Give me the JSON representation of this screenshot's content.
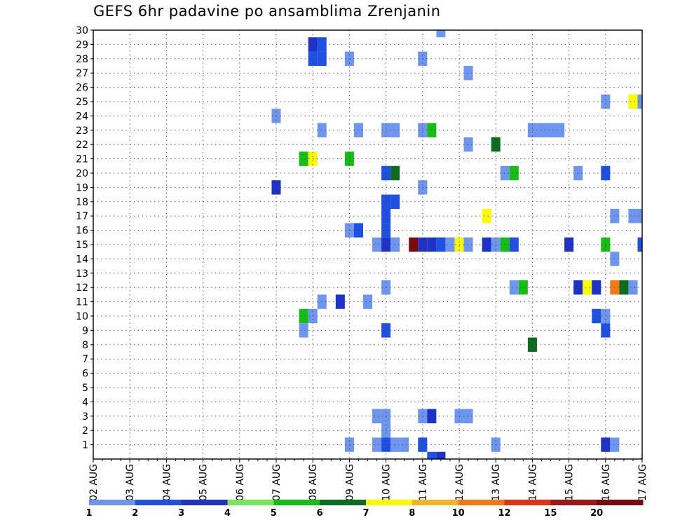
{
  "chart_data": {
    "type": "heatmap",
    "title": "GEFS 6hr padavine po ansamblima Zrenjanin",
    "xlabel": "",
    "ylabel": "",
    "x_tick_labels": [
      "02 AUG",
      "03 AUG",
      "04 AUG",
      "05 AUG",
      "06 AUG",
      "07 AUG",
      "08 AUG",
      "09 AUG",
      "10 AUG",
      "11 AUG",
      "12 AUG",
      "13 AUG",
      "14 AUG",
      "15 AUG",
      "16 AUG",
      "17 AUG"
    ],
    "y_tick_labels": [
      "1",
      "2",
      "3",
      "4",
      "5",
      "6",
      "7",
      "8",
      "9",
      "10",
      "11",
      "12",
      "13",
      "14",
      "15",
      "16",
      "17",
      "18",
      "19",
      "20",
      "21",
      "22",
      "23",
      "24",
      "25",
      "26",
      "27",
      "28",
      "29",
      "30"
    ],
    "x_range_days": [
      0,
      15
    ],
    "y_range": [
      0,
      30
    ],
    "grid": true,
    "grid_style": "dotted",
    "x_step": "6hr",
    "colorbar": {
      "labels": [
        "1",
        "2",
        "3",
        "4",
        "5",
        "6",
        "7",
        "8",
        "10",
        "12",
        "15",
        "20"
      ],
      "colors": [
        "#b4c8f5",
        "#6e96f0",
        "#1e50e6",
        "#1e32c8",
        "#78e65a",
        "#14be14",
        "#0a6e1e",
        "#fafa00",
        "#f5b428",
        "#f57814",
        "#e13214",
        "#a01414",
        "#780a0a"
      ]
    },
    "cells": [
      {
        "x": 5.0,
        "y": 19,
        "c": 3
      },
      {
        "x": 5.0,
        "y": 24,
        "c": 1
      },
      {
        "x": 5.75,
        "y": 10,
        "c": 5
      },
      {
        "x": 5.75,
        "y": 9,
        "c": 1
      },
      {
        "x": 5.75,
        "y": 21,
        "c": 5
      },
      {
        "x": 6.0,
        "y": 10,
        "c": 1
      },
      {
        "x": 6.0,
        "y": 21,
        "c": 7
      },
      {
        "x": 6.0,
        "y": 28,
        "c": 2
      },
      {
        "x": 6.0,
        "y": 29,
        "c": 3
      },
      {
        "x": 6.25,
        "y": 11,
        "c": 1
      },
      {
        "x": 6.25,
        "y": 23,
        "c": 1
      },
      {
        "x": 6.25,
        "y": 28,
        "c": 2
      },
      {
        "x": 6.25,
        "y": 29,
        "c": 2
      },
      {
        "x": 6.75,
        "y": 11,
        "c": 3
      },
      {
        "x": 7.0,
        "y": 1,
        "c": 1
      },
      {
        "x": 7.0,
        "y": 16,
        "c": 1
      },
      {
        "x": 7.0,
        "y": 21,
        "c": 5
      },
      {
        "x": 7.0,
        "y": 28,
        "c": 1
      },
      {
        "x": 7.25,
        "y": 16,
        "c": 2
      },
      {
        "x": 7.25,
        "y": 23,
        "c": 1
      },
      {
        "x": 7.5,
        "y": 11,
        "c": 1
      },
      {
        "x": 7.75,
        "y": 1,
        "c": 1
      },
      {
        "x": 7.75,
        "y": 3,
        "c": 1
      },
      {
        "x": 7.75,
        "y": 15,
        "c": 1
      },
      {
        "x": 8.0,
        "y": 1,
        "c": 2
      },
      {
        "x": 8.0,
        "y": 2,
        "c": 1
      },
      {
        "x": 8.0,
        "y": 3,
        "c": 1
      },
      {
        "x": 8.0,
        "y": 9,
        "c": 2
      },
      {
        "x": 8.0,
        "y": 12,
        "c": 1
      },
      {
        "x": 8.0,
        "y": 15,
        "c": 3
      },
      {
        "x": 8.0,
        "y": 16,
        "c": 2
      },
      {
        "x": 8.0,
        "y": 17,
        "c": 2
      },
      {
        "x": 8.0,
        "y": 18,
        "c": 2
      },
      {
        "x": 8.0,
        "y": 20,
        "c": 2
      },
      {
        "x": 8.0,
        "y": 23,
        "c": 1
      },
      {
        "x": 8.25,
        "y": 1,
        "c": 1
      },
      {
        "x": 8.25,
        "y": 15,
        "c": 1
      },
      {
        "x": 8.25,
        "y": 18,
        "c": 2
      },
      {
        "x": 8.25,
        "y": 20,
        "c": 6
      },
      {
        "x": 8.25,
        "y": 23,
        "c": 1
      },
      {
        "x": 8.5,
        "y": 1,
        "c": 1
      },
      {
        "x": 8.75,
        "y": 15,
        "c": 12
      },
      {
        "x": 9.0,
        "y": 1,
        "c": 2
      },
      {
        "x": 9.0,
        "y": 3,
        "c": 1
      },
      {
        "x": 9.0,
        "y": 15,
        "c": 3
      },
      {
        "x": 9.0,
        "y": 19,
        "c": 1
      },
      {
        "x": 9.0,
        "y": 23,
        "c": 1
      },
      {
        "x": 9.0,
        "y": 28,
        "c": 1
      },
      {
        "x": 9.25,
        "y": 0,
        "c": 2
      },
      {
        "x": 9.25,
        "y": 3,
        "c": 3
      },
      {
        "x": 9.25,
        "y": 15,
        "c": 3
      },
      {
        "x": 9.25,
        "y": 23,
        "c": 5
      },
      {
        "x": 9.5,
        "y": 0,
        "c": 3
      },
      {
        "x": 9.5,
        "y": 15,
        "c": 2
      },
      {
        "x": 9.5,
        "y": 30,
        "c": 1
      },
      {
        "x": 9.75,
        "y": 15,
        "c": 1
      },
      {
        "x": 10.0,
        "y": 3,
        "c": 1
      },
      {
        "x": 10.0,
        "y": 15,
        "c": 7
      },
      {
        "x": 10.25,
        "y": 3,
        "c": 1
      },
      {
        "x": 10.25,
        "y": 15,
        "c": 1
      },
      {
        "x": 10.25,
        "y": 22,
        "c": 1
      },
      {
        "x": 10.25,
        "y": 27,
        "c": 1
      },
      {
        "x": 10.75,
        "y": 15,
        "c": 3
      },
      {
        "x": 10.75,
        "y": 17,
        "c": 7
      },
      {
        "x": 11.0,
        "y": 1,
        "c": 1
      },
      {
        "x": 11.0,
        "y": 15,
        "c": 1
      },
      {
        "x": 11.0,
        "y": 22,
        "c": 6
      },
      {
        "x": 11.25,
        "y": 15,
        "c": 5
      },
      {
        "x": 11.25,
        "y": 20,
        "c": 1
      },
      {
        "x": 11.5,
        "y": 12,
        "c": 1
      },
      {
        "x": 11.5,
        "y": 15,
        "c": 2
      },
      {
        "x": 11.5,
        "y": 20,
        "c": 5
      },
      {
        "x": 11.75,
        "y": 12,
        "c": 5
      },
      {
        "x": 12.0,
        "y": 8,
        "c": 6
      },
      {
        "x": 12.0,
        "y": 23,
        "c": 1
      },
      {
        "x": 12.25,
        "y": 23,
        "c": 1
      },
      {
        "x": 12.5,
        "y": 23,
        "c": 1
      },
      {
        "x": 12.75,
        "y": 23,
        "c": 1
      },
      {
        "x": 13.0,
        "y": 15,
        "c": 3
      },
      {
        "x": 13.25,
        "y": 12,
        "c": 3
      },
      {
        "x": 13.25,
        "y": 20,
        "c": 1
      },
      {
        "x": 13.5,
        "y": 12,
        "c": 7
      },
      {
        "x": 13.75,
        "y": 10,
        "c": 2
      },
      {
        "x": 13.75,
        "y": 12,
        "c": 3
      },
      {
        "x": 14.0,
        "y": 1,
        "c": 3
      },
      {
        "x": 14.0,
        "y": 9,
        "c": 2
      },
      {
        "x": 14.0,
        "y": 10,
        "c": 1
      },
      {
        "x": 14.0,
        "y": 15,
        "c": 5
      },
      {
        "x": 14.0,
        "y": 20,
        "c": 2
      },
      {
        "x": 14.0,
        "y": 25,
        "c": 1
      },
      {
        "x": 14.25,
        "y": 1,
        "c": 1
      },
      {
        "x": 14.25,
        "y": 12,
        "c": 9
      },
      {
        "x": 14.25,
        "y": 14,
        "c": 1
      },
      {
        "x": 14.25,
        "y": 17,
        "c": 1
      },
      {
        "x": 14.5,
        "y": 12,
        "c": 6
      },
      {
        "x": 14.75,
        "y": 12,
        "c": 1
      },
      {
        "x": 14.75,
        "y": 17,
        "c": 1
      },
      {
        "x": 14.75,
        "y": 25,
        "c": 7
      },
      {
        "x": 15.0,
        "y": 15,
        "c": 2
      },
      {
        "x": 15.0,
        "y": 17,
        "c": 1
      },
      {
        "x": 15.0,
        "y": 25,
        "c": 1
      }
    ]
  }
}
